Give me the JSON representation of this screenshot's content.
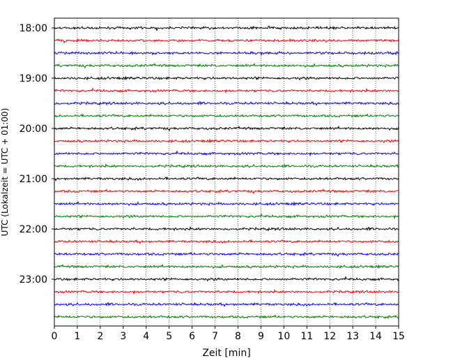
{
  "chart_data": {
    "type": "line",
    "title": "",
    "xlabel": "Zeit  [min]",
    "ylabel": "UTC (Lokalzeit = UTC + 01:00)",
    "xlim": [
      0,
      15
    ],
    "x_ticks": [
      0,
      1,
      2,
      3,
      4,
      5,
      6,
      7,
      8,
      9,
      10,
      11,
      12,
      13,
      14,
      15
    ],
    "y_tick_labels": [
      "18:00",
      "19:00",
      "20:00",
      "21:00",
      "22:00",
      "23:00"
    ],
    "grid": "vertical dotted",
    "trace_colors": [
      "#000000",
      "#ff0000",
      "#0000ff",
      "#008000"
    ],
    "trace_start_times": [
      "18:00",
      "18:15",
      "18:30",
      "18:45",
      "19:00",
      "19:15",
      "19:30",
      "19:45",
      "20:00",
      "20:15",
      "20:30",
      "20:45",
      "21:00",
      "21:15",
      "21:30",
      "21:45",
      "22:00",
      "22:15",
      "22:30",
      "22:45",
      "23:00",
      "23:15",
      "23:30",
      "23:45"
    ],
    "trace_duration_min": 15
  }
}
